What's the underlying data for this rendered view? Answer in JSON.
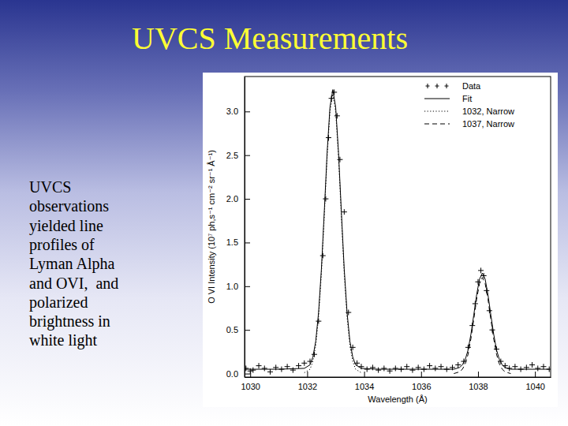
{
  "slide": {
    "title": "UVCS Measurements",
    "text_lines": [
      "UVCS",
      "observations",
      "yielded line",
      "profiles of",
      "Lyman Alpha",
      "and OVI,  and",
      "polarized",
      "brightness in",
      "white light"
    ]
  },
  "chart_data": {
    "type": "line",
    "x_label": "Wavelength (Å)",
    "y_label": "O VI Intensity (10⁷ ph,s⁻¹ cm⁻² sr⁻¹ Å⁻¹)",
    "xlim": [
      1029.8,
      1040.55
    ],
    "xticks": [
      1030,
      1032,
      1034,
      1036,
      1038,
      1040
    ],
    "ylim": [
      -0.04,
      3.4
    ],
    "yticks": [
      {
        "value": 0,
        "label": "0.0"
      },
      {
        "value": 0.5,
        "label": "0.5"
      },
      {
        "value": 1,
        "label": "1.0"
      },
      {
        "value": 1.5,
        "label": "1.5"
      },
      {
        "value": 2,
        "label": "2.0"
      },
      {
        "value": 2.5,
        "label": "2.5"
      },
      {
        "value": 3,
        "label": "3.0"
      }
    ],
    "grid": false,
    "legend": "upper right",
    "series": [
      {
        "name": "Data",
        "type": "scatter",
        "marker": "plus",
        "color": "#000000",
        "x": [
          1029.85,
          1030.0,
          1030.1,
          1030.3,
          1030.5,
          1030.7,
          1030.9,
          1031.1,
          1031.3,
          1031.5,
          1031.7,
          1031.9,
          1032.1,
          1032.25,
          1032.4,
          1032.55,
          1032.65,
          1032.75,
          1032.85,
          1032.95,
          1033.05,
          1033.15,
          1033.3,
          1033.45,
          1033.6,
          1033.75,
          1033.9,
          1034.1,
          1034.3,
          1034.5,
          1034.7,
          1034.9,
          1035.1,
          1035.3,
          1035.5,
          1035.7,
          1035.9,
          1036.1,
          1036.3,
          1036.5,
          1036.7,
          1036.9,
          1037.1,
          1037.3,
          1037.5,
          1037.65,
          1037.8,
          1037.9,
          1038.0,
          1038.1,
          1038.2,
          1038.3,
          1038.4,
          1038.5,
          1038.65,
          1038.8,
          1038.95,
          1039.1,
          1039.3,
          1039.5,
          1039.7,
          1039.9,
          1040.1,
          1040.3,
          1040.5
        ],
        "values": [
          0.06,
          0.03,
          0.04,
          0.09,
          0.06,
          0.02,
          0.07,
          0.05,
          0.08,
          0.04,
          0.09,
          0.12,
          0.14,
          0.22,
          0.6,
          1.35,
          2.0,
          2.7,
          3.15,
          3.22,
          2.95,
          2.45,
          1.85,
          0.7,
          0.3,
          0.12,
          0.08,
          0.05,
          0.07,
          0.04,
          0.06,
          0.03,
          0.06,
          0.05,
          0.08,
          0.04,
          0.07,
          0.05,
          0.09,
          0.06,
          0.08,
          0.05,
          0.07,
          0.1,
          0.14,
          0.3,
          0.55,
          0.8,
          1.05,
          1.18,
          1.12,
          0.95,
          0.72,
          0.5,
          0.28,
          0.14,
          0.09,
          0.06,
          0.08,
          0.05,
          0.07,
          0.1,
          0.06,
          0.08,
          0.05
        ]
      },
      {
        "name": "Fit",
        "type": "line",
        "line_style": "solid",
        "color": "#000000",
        "x": [
          1029.8,
          1030,
          1031,
          1031.9,
          1032.1,
          1032.2,
          1032.3,
          1032.4,
          1032.5,
          1032.6,
          1032.7,
          1032.8,
          1032.9,
          1033.0,
          1033.1,
          1033.2,
          1033.3,
          1033.4,
          1033.5,
          1033.6,
          1033.7,
          1033.9,
          1034.5,
          1035.5,
          1036.5,
          1037.15,
          1037.35,
          1037.45,
          1037.55,
          1037.65,
          1037.75,
          1037.85,
          1037.95,
          1038.05,
          1038.15,
          1038.25,
          1038.35,
          1038.45,
          1038.55,
          1038.65,
          1038.75,
          1038.85,
          1038.95,
          1039.15,
          1040,
          1040.5
        ],
        "values": [
          0.05,
          0.05,
          0.05,
          0.06,
          0.1,
          0.19,
          0.37,
          0.7,
          1.2,
          1.85,
          2.53,
          3.05,
          3.25,
          3.05,
          2.53,
          1.85,
          1.2,
          0.7,
          0.37,
          0.19,
          0.1,
          0.06,
          0.05,
          0.05,
          0.05,
          0.05,
          0.07,
          0.1,
          0.16,
          0.27,
          0.45,
          0.67,
          0.9,
          1.08,
          1.15,
          1.08,
          0.9,
          0.67,
          0.45,
          0.27,
          0.16,
          0.1,
          0.07,
          0.05,
          0.05,
          0.05
        ]
      },
      {
        "name": "1032, Narrow",
        "type": "line",
        "line_style": "dotted",
        "color": "#000000",
        "x": [
          1031.9,
          1032.1,
          1032.2,
          1032.3,
          1032.4,
          1032.5,
          1032.6,
          1032.7,
          1032.8,
          1032.9,
          1033.0,
          1033.1,
          1033.2,
          1033.3,
          1033.4,
          1033.5,
          1033.6,
          1033.7,
          1033.9
        ],
        "values": [
          0.01,
          0.05,
          0.14,
          0.32,
          0.65,
          1.15,
          1.8,
          2.48,
          3.0,
          3.2,
          3.0,
          2.48,
          1.8,
          1.15,
          0.65,
          0.32,
          0.14,
          0.05,
          0.01
        ]
      },
      {
        "name": "1037, Narrow",
        "type": "line",
        "line_style": "dashed",
        "color": "#000000",
        "x": [
          1037.15,
          1037.35,
          1037.45,
          1037.55,
          1037.65,
          1037.75,
          1037.85,
          1037.95,
          1038.05,
          1038.15,
          1038.25,
          1038.35,
          1038.45,
          1038.55,
          1038.65,
          1038.75,
          1038.85,
          1038.95,
          1039.15
        ],
        "values": [
          0.0,
          0.02,
          0.05,
          0.11,
          0.22,
          0.4,
          0.62,
          0.85,
          1.03,
          1.1,
          1.03,
          0.85,
          0.62,
          0.4,
          0.22,
          0.11,
          0.05,
          0.02,
          0.0
        ]
      }
    ]
  }
}
